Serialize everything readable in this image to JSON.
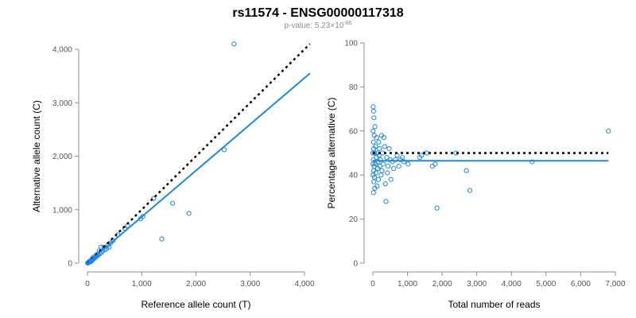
{
  "title": "rs11574 - ENSG00000117318",
  "subtitle": "p-value: 5.23×10",
  "subtitle_exponent": "-86",
  "colors": {
    "points": "#1e88e5",
    "fit_line": "#1e88e5",
    "identity_line": "#000000"
  },
  "chart_data": [
    {
      "type": "scatter",
      "xlabel": "Reference allele count (T)",
      "ylabel": "Alternative allele count (C)",
      "xlim": [
        0,
        4000
      ],
      "ylim": [
        0,
        4000
      ],
      "xticks": [
        "0",
        "1,000",
        "2,000",
        "3,000",
        "4,000"
      ],
      "yticks": [
        "0",
        "1,000",
        "2,000",
        "3,000",
        "4,000"
      ],
      "xtick_values": [
        0,
        1000,
        2000,
        3000,
        4000
      ],
      "ytick_values": [
        0,
        1000,
        2000,
        3000,
        4000
      ],
      "grid": false,
      "points": [
        [
          2700,
          4100
        ],
        [
          2520,
          2120
        ],
        [
          1870,
          930
        ],
        [
          1570,
          1120
        ],
        [
          1370,
          450
        ],
        [
          1220,
          1210
        ],
        [
          1020,
          870
        ],
        [
          980,
          830
        ],
        [
          740,
          700
        ],
        [
          690,
          650
        ],
        [
          560,
          530
        ],
        [
          470,
          420
        ],
        [
          430,
          380
        ],
        [
          400,
          300
        ],
        [
          380,
          340
        ],
        [
          350,
          270
        ],
        [
          320,
          250
        ],
        [
          300,
          300
        ],
        [
          280,
          230
        ],
        [
          260,
          200
        ],
        [
          250,
          300
        ],
        [
          230,
          180
        ],
        [
          220,
          230
        ],
        [
          200,
          150
        ],
        [
          190,
          170
        ],
        [
          170,
          130
        ],
        [
          160,
          150
        ],
        [
          150,
          120
        ],
        [
          140,
          100
        ],
        [
          130,
          110
        ],
        [
          120,
          90
        ],
        [
          110,
          80
        ],
        [
          100,
          70
        ],
        [
          95,
          100
        ],
        [
          90,
          60
        ],
        [
          85,
          50
        ],
        [
          80,
          70
        ],
        [
          75,
          40
        ],
        [
          70,
          55
        ],
        [
          65,
          30
        ],
        [
          60,
          45
        ],
        [
          55,
          35
        ],
        [
          50,
          25
        ],
        [
          45,
          40
        ],
        [
          40,
          20
        ],
        [
          35,
          30
        ],
        [
          30,
          15
        ],
        [
          25,
          20
        ],
        [
          20,
          10
        ],
        [
          15,
          12
        ],
        [
          10,
          8
        ],
        [
          8,
          5
        ],
        [
          5,
          3
        ],
        [
          3,
          2
        ]
      ],
      "identity_line": [
        [
          0,
          0
        ],
        [
          4100,
          4100
        ]
      ],
      "fit_line": [
        [
          0,
          0
        ],
        [
          4100,
          3550
        ]
      ]
    },
    {
      "type": "scatter",
      "xlabel": "Total number of reads",
      "ylabel": "Percentage alternative (C)",
      "xlim": [
        0,
        7000
      ],
      "ylim": [
        0,
        100
      ],
      "xticks": [
        "0",
        "1,000",
        "2,000",
        "3,000",
        "4,000",
        "5,000",
        "6,000",
        "7,000"
      ],
      "yticks": [
        "0",
        "20",
        "40",
        "60",
        "80",
        "100"
      ],
      "xtick_values": [
        0,
        1000,
        2000,
        3000,
        4000,
        5000,
        6000,
        7000
      ],
      "ytick_values": [
        0,
        20,
        40,
        60,
        80,
        100
      ],
      "grid": false,
      "points": [
        [
          6800,
          60
        ],
        [
          4600,
          46
        ],
        [
          2800,
          33
        ],
        [
          2700,
          42
        ],
        [
          2400,
          50
        ],
        [
          1850,
          25
        ],
        [
          1800,
          45
        ],
        [
          1720,
          44
        ],
        [
          1550,
          50
        ],
        [
          1400,
          49
        ],
        [
          1350,
          48
        ],
        [
          1020,
          45
        ],
        [
          900,
          46
        ],
        [
          850,
          48
        ],
        [
          800,
          47
        ],
        [
          750,
          44
        ],
        [
          700,
          49
        ],
        [
          650,
          47
        ],
        [
          600,
          43
        ],
        [
          560,
          46
        ],
        [
          520,
          38
        ],
        [
          500,
          47
        ],
        [
          470,
          52
        ],
        [
          440,
          44
        ],
        [
          420,
          41
        ],
        [
          400,
          48
        ],
        [
          380,
          28
        ],
        [
          360,
          36
        ],
        [
          340,
          53
        ],
        [
          320,
          57
        ],
        [
          300,
          45
        ],
        [
          280,
          50
        ],
        [
          260,
          42
        ],
        [
          250,
          58
        ],
        [
          240,
          40
        ],
        [
          220,
          47
        ],
        [
          200,
          44
        ],
        [
          190,
          52
        ],
        [
          180,
          49
        ],
        [
          170,
          55
        ],
        [
          160,
          38
        ],
        [
          150,
          46
        ],
        [
          140,
          43
        ],
        [
          130,
          50
        ],
        [
          120,
          35
        ],
        [
          110,
          57
        ],
        [
          100,
          48
        ],
        [
          90,
          41
        ],
        [
          80,
          53
        ],
        [
          70,
          45
        ],
        [
          60,
          62
        ],
        [
          55,
          34
        ],
        [
          50,
          50
        ],
        [
          45,
          39
        ],
        [
          40,
          58
        ],
        [
          35,
          44
        ],
        [
          30,
          66
        ],
        [
          28,
          37
        ],
        [
          25,
          52
        ],
        [
          22,
          42
        ],
        [
          20,
          69
        ],
        [
          18,
          32
        ],
        [
          15,
          55
        ],
        [
          12,
          47
        ],
        [
          10,
          71
        ],
        [
          8,
          40
        ],
        [
          6,
          60
        ],
        [
          5,
          45
        ],
        [
          3,
          50
        ]
      ],
      "identity_line": [
        [
          0,
          50
        ],
        [
          6800,
          50
        ]
      ],
      "fit_line": [
        [
          0,
          46.5
        ],
        [
          6800,
          46.5
        ]
      ]
    }
  ]
}
